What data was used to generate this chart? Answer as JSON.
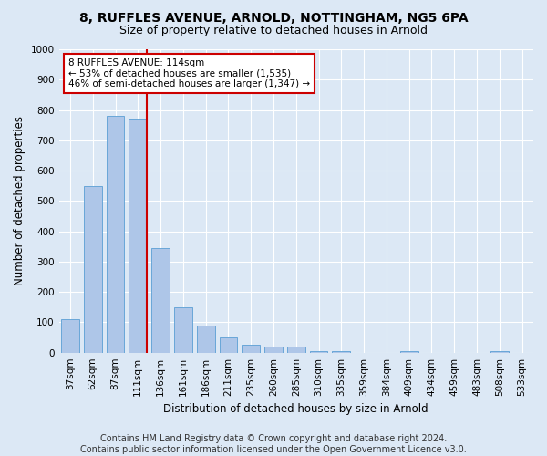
{
  "title1": "8, RUFFLES AVENUE, ARNOLD, NOTTINGHAM, NG5 6PA",
  "title2": "Size of property relative to detached houses in Arnold",
  "xlabel": "Distribution of detached houses by size in Arnold",
  "ylabel": "Number of detached properties",
  "footer1": "Contains HM Land Registry data © Crown copyright and database right 2024.",
  "footer2": "Contains public sector information licensed under the Open Government Licence v3.0.",
  "categories": [
    "37sqm",
    "62sqm",
    "87sqm",
    "111sqm",
    "136sqm",
    "161sqm",
    "186sqm",
    "211sqm",
    "235sqm",
    "260sqm",
    "285sqm",
    "310sqm",
    "335sqm",
    "359sqm",
    "384sqm",
    "409sqm",
    "434sqm",
    "459sqm",
    "483sqm",
    "508sqm",
    "533sqm"
  ],
  "values": [
    110,
    550,
    780,
    770,
    345,
    150,
    90,
    50,
    25,
    20,
    20,
    5,
    5,
    0,
    0,
    5,
    0,
    0,
    0,
    5,
    0
  ],
  "bar_color": "#aec6e8",
  "bar_edge_color": "#5a9fd4",
  "red_line_color": "#cc0000",
  "annotation_text": "8 RUFFLES AVENUE: 114sqm\n← 53% of detached houses are smaller (1,535)\n46% of semi-detached houses are larger (1,347) →",
  "annotation_box_color": "#ffffff",
  "annotation_border_color": "#cc0000",
  "property_bin_index": 3,
  "ylim": [
    0,
    1000
  ],
  "yticks": [
    0,
    100,
    200,
    300,
    400,
    500,
    600,
    700,
    800,
    900,
    1000
  ],
  "background_color": "#dce8f5",
  "plot_bg_color": "#dce8f5",
  "grid_color": "#ffffff",
  "title1_fontsize": 10,
  "title2_fontsize": 9,
  "axis_label_fontsize": 8.5,
  "tick_fontsize": 7.5,
  "footer_fontsize": 7
}
